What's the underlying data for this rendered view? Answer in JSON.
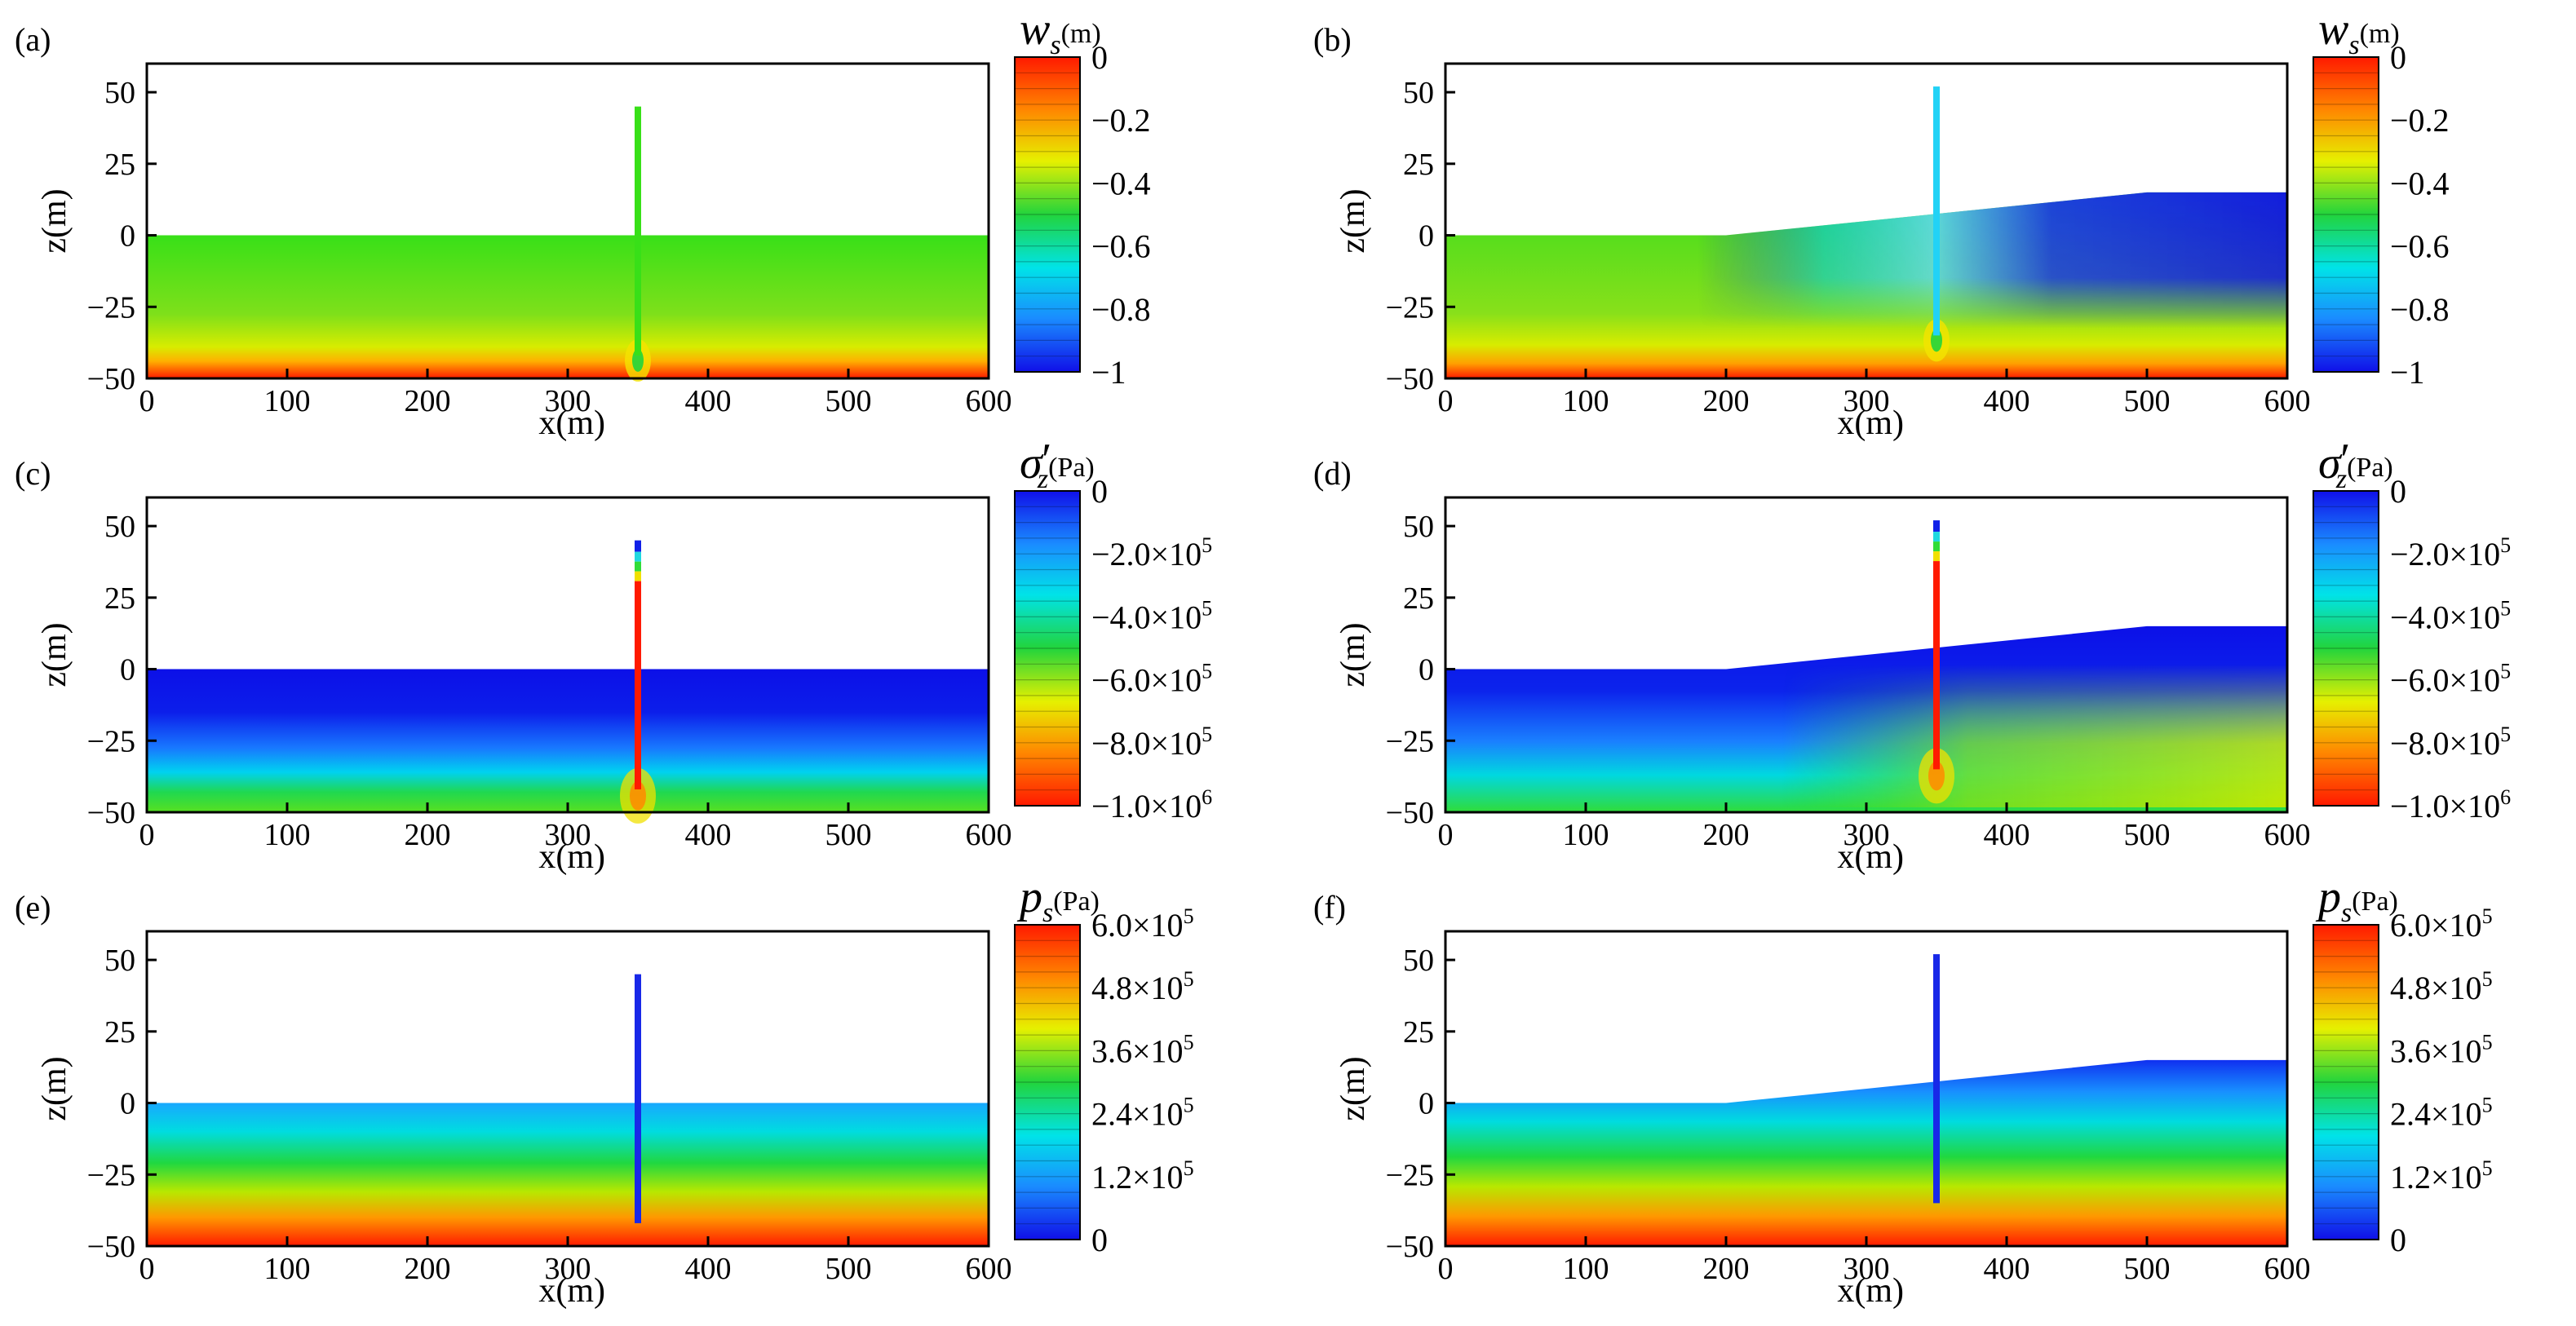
{
  "chart_data": [
    {
      "type": "heatmap",
      "panel_label": "(a)",
      "xlabel": "x(m)",
      "ylabel": "z(m)",
      "xlim": [
        0,
        600
      ],
      "ylim": [
        -50,
        60
      ],
      "xticks": [
        "0",
        "100",
        "200",
        "300",
        "400",
        "500",
        "600"
      ],
      "yticks": [
        "50",
        "25",
        "0",
        "−25",
        "−50"
      ],
      "surface": {
        "x": [
          0,
          600
        ],
        "z": [
          0,
          0
        ]
      },
      "pile": {
        "x": 350,
        "top": 45,
        "bottom": -42
      },
      "colorbar": {
        "symbol": "w",
        "subscript": "s",
        "prime": false,
        "unit": "(m)",
        "min": -1,
        "max": 0,
        "scheme": "rainbow",
        "ticks": [
          {
            "m": "0",
            "e": ""
          },
          {
            "m": "−0.2",
            "e": ""
          },
          {
            "m": "−0.4",
            "e": ""
          },
          {
            "m": "−0.6",
            "e": ""
          },
          {
            "m": "−0.8",
            "e": ""
          },
          {
            "m": "−1",
            "e": ""
          }
        ]
      }
    },
    {
      "type": "heatmap",
      "panel_label": "(b)",
      "xlabel": "x(m)",
      "ylabel": "z(m)",
      "xlim": [
        0,
        600
      ],
      "ylim": [
        -50,
        60
      ],
      "xticks": [
        "0",
        "100",
        "200",
        "300",
        "400",
        "500",
        "600"
      ],
      "yticks": [
        "50",
        "25",
        "0",
        "−25",
        "−50"
      ],
      "surface": {
        "x": [
          0,
          200,
          500,
          600
        ],
        "z": [
          0,
          0,
          15,
          15
        ]
      },
      "pile": {
        "x": 350,
        "top": 52,
        "bottom": -35
      },
      "colorbar": {
        "symbol": "w",
        "subscript": "s",
        "prime": false,
        "unit": "(m)",
        "min": -1,
        "max": 0,
        "scheme": "rainbow",
        "ticks": [
          {
            "m": "0",
            "e": ""
          },
          {
            "m": "−0.2",
            "e": ""
          },
          {
            "m": "−0.4",
            "e": ""
          },
          {
            "m": "−0.6",
            "e": ""
          },
          {
            "m": "−0.8",
            "e": ""
          },
          {
            "m": "−1",
            "e": ""
          }
        ]
      }
    },
    {
      "type": "heatmap",
      "panel_label": "(c)",
      "xlabel": "x(m)",
      "ylabel": "z(m)",
      "xlim": [
        0,
        600
      ],
      "ylim": [
        -50,
        60
      ],
      "xticks": [
        "0",
        "100",
        "200",
        "300",
        "400",
        "500",
        "600"
      ],
      "yticks": [
        "50",
        "25",
        "0",
        "−25",
        "−50"
      ],
      "surface": {
        "x": [
          0,
          600
        ],
        "z": [
          0,
          0
        ]
      },
      "pile": {
        "x": 350,
        "top": 45,
        "bottom": -42
      },
      "colorbar": {
        "symbol": "σ",
        "subscript": "z",
        "prime": true,
        "unit": "(Pa)",
        "min": -1000000,
        "max": 0,
        "scheme": "rainbow-reversed",
        "ticks": [
          {
            "m": "0",
            "e": ""
          },
          {
            "m": "−2.0×10",
            "e": "5"
          },
          {
            "m": "−4.0×10",
            "e": "5"
          },
          {
            "m": "−6.0×10",
            "e": "5"
          },
          {
            "m": "−8.0×10",
            "e": "5"
          },
          {
            "m": "−1.0×10",
            "e": "6"
          }
        ]
      }
    },
    {
      "type": "heatmap",
      "panel_label": "(d)",
      "xlabel": "x(m)",
      "ylabel": "z(m)",
      "xlim": [
        0,
        600
      ],
      "ylim": [
        -50,
        60
      ],
      "xticks": [
        "0",
        "100",
        "200",
        "300",
        "400",
        "500",
        "600"
      ],
      "yticks": [
        "50",
        "25",
        "0",
        "−25",
        "−50"
      ],
      "surface": {
        "x": [
          0,
          200,
          500,
          600
        ],
        "z": [
          0,
          0,
          15,
          15
        ]
      },
      "pile": {
        "x": 350,
        "top": 52,
        "bottom": -35
      },
      "colorbar": {
        "symbol": "σ",
        "subscript": "z",
        "prime": true,
        "unit": "(Pa)",
        "min": -1000000,
        "max": 0,
        "scheme": "rainbow-reversed",
        "ticks": [
          {
            "m": "0",
            "e": ""
          },
          {
            "m": "−2.0×10",
            "e": "5"
          },
          {
            "m": "−4.0×10",
            "e": "5"
          },
          {
            "m": "−6.0×10",
            "e": "5"
          },
          {
            "m": "−8.0×10",
            "e": "5"
          },
          {
            "m": "−1.0×10",
            "e": "6"
          }
        ]
      }
    },
    {
      "type": "heatmap",
      "panel_label": "(e)",
      "xlabel": "x(m)",
      "ylabel": "z(m)",
      "xlim": [
        0,
        600
      ],
      "ylim": [
        -50,
        60
      ],
      "xticks": [
        "0",
        "100",
        "200",
        "300",
        "400",
        "500",
        "600"
      ],
      "yticks": [
        "50",
        "25",
        "0",
        "−25",
        "−50"
      ],
      "surface": {
        "x": [
          0,
          600
        ],
        "z": [
          0,
          0
        ]
      },
      "pile": {
        "x": 350,
        "top": 45,
        "bottom": -42
      },
      "colorbar": {
        "symbol": "p",
        "subscript": "s",
        "prime": false,
        "unit": "(Pa)",
        "min": 0,
        "max": 600000,
        "scheme": "rainbow",
        "ticks": [
          {
            "m": "6.0×10",
            "e": "5"
          },
          {
            "m": "4.8×10",
            "e": "5"
          },
          {
            "m": "3.6×10",
            "e": "5"
          },
          {
            "m": "2.4×10",
            "e": "5"
          },
          {
            "m": "1.2×10",
            "e": "5"
          },
          {
            "m": "0",
            "e": ""
          }
        ]
      }
    },
    {
      "type": "heatmap",
      "panel_label": "(f)",
      "xlabel": "x(m)",
      "ylabel": "z(m)",
      "xlim": [
        0,
        600
      ],
      "ylim": [
        -50,
        60
      ],
      "xticks": [
        "0",
        "100",
        "200",
        "300",
        "400",
        "500",
        "600"
      ],
      "yticks": [
        "50",
        "25",
        "0",
        "−25",
        "−50"
      ],
      "surface": {
        "x": [
          0,
          200,
          500,
          600
        ],
        "z": [
          0,
          0,
          15,
          15
        ]
      },
      "pile": {
        "x": 350,
        "top": 52,
        "bottom": -35
      },
      "colorbar": {
        "symbol": "p",
        "subscript": "s",
        "prime": false,
        "unit": "(Pa)",
        "min": 0,
        "max": 600000,
        "scheme": "rainbow",
        "ticks": [
          {
            "m": "6.0×10",
            "e": "5"
          },
          {
            "m": "4.8×10",
            "e": "5"
          },
          {
            "m": "3.6×10",
            "e": "5"
          },
          {
            "m": "2.4×10",
            "e": "5"
          },
          {
            "m": "1.2×10",
            "e": "5"
          },
          {
            "m": "0",
            "e": ""
          }
        ]
      }
    }
  ]
}
